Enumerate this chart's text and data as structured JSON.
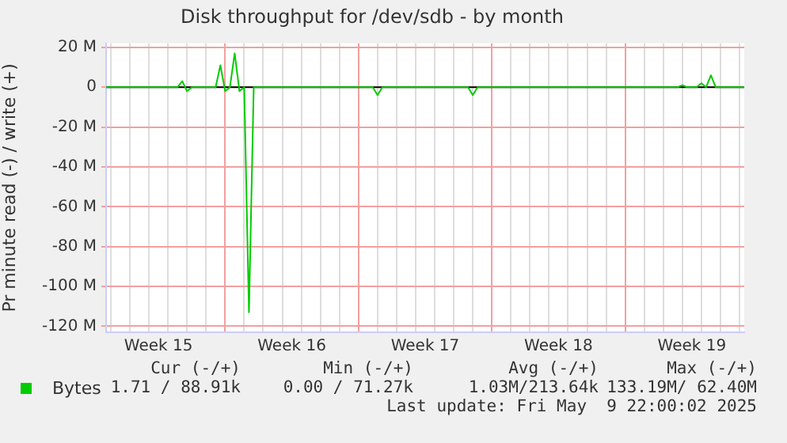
{
  "chart_data": {
    "type": "line",
    "title": "Disk throughput for /dev/sdb - by month",
    "ylabel": "Pr minute read (-) / write (+)",
    "categories": [
      null,
      null,
      null,
      null,
      null,
      null,
      null,
      null,
      null,
      null,
      null,
      "Week 15",
      null,
      null,
      null,
      null,
      null,
      null,
      null,
      null,
      null,
      null,
      null,
      null,
      null,
      null,
      null,
      null,
      null,
      null,
      null,
      null,
      null,
      null,
      null,
      null,
      null,
      null,
      null,
      "Week 16",
      null,
      null,
      null,
      null,
      null,
      null,
      null,
      null,
      null,
      null,
      null,
      null,
      null,
      null,
      null,
      null,
      null,
      null,
      null,
      null,
      null,
      null,
      null,
      null,
      null,
      null,
      null,
      "Week 17",
      null,
      null,
      null,
      null,
      null,
      null,
      null,
      null,
      null,
      null,
      null,
      null,
      null,
      null,
      null,
      null,
      null,
      null,
      null,
      null,
      null,
      null,
      null,
      null,
      null,
      null,
      null,
      "Week 18",
      null,
      null,
      null,
      null,
      null,
      null,
      null,
      null,
      null,
      null,
      null,
      null,
      null,
      null,
      null,
      null,
      null,
      null,
      null,
      null,
      null,
      null,
      null,
      null,
      null,
      null,
      null,
      "Week 19",
      null,
      null,
      null,
      null,
      null,
      null,
      null,
      null,
      null,
      null,
      null
    ],
    "series": [
      {
        "name": "Bytes",
        "color": "#00cc00",
        "values": [
          0,
          0,
          0,
          0,
          0,
          0,
          0,
          0,
          0,
          0,
          0,
          0,
          0,
          0,
          0,
          0,
          3,
          -2,
          0,
          0,
          0,
          0,
          0,
          0,
          11,
          -2,
          0,
          17,
          -2,
          0,
          -113,
          0,
          0,
          0,
          0,
          0,
          0,
          0,
          0,
          0,
          0,
          0,
          0,
          0,
          0,
          0,
          0,
          0,
          0,
          0,
          0,
          0,
          0,
          0,
          0,
          0,
          0,
          -4,
          0,
          0,
          0,
          0,
          0,
          0,
          0,
          0,
          0,
          0,
          0,
          0,
          0,
          0,
          0,
          0,
          0,
          0,
          0,
          -4,
          0,
          0,
          0,
          0,
          0,
          0,
          0,
          0,
          0,
          0,
          0,
          0,
          0,
          0,
          0,
          0,
          0,
          0,
          0,
          0,
          0,
          0,
          0,
          0,
          0,
          0,
          0,
          0,
          0,
          0,
          0,
          0,
          0,
          0,
          0,
          0,
          0,
          0,
          0,
          0,
          0,
          0,
          0,
          1,
          0,
          0,
          0,
          2,
          0,
          6,
          0,
          0,
          0,
          0,
          0,
          0,
          0
        ]
      }
    ],
    "ylim": [
      -123,
      22
    ],
    "yticks": [
      {
        "value": -120,
        "label": "-120 M"
      },
      {
        "value": -100,
        "label": "-100 M"
      },
      {
        "value": -80,
        "label": "-80 M"
      },
      {
        "value": -60,
        "label": "-60 M"
      },
      {
        "value": -40,
        "label": "-40 M"
      },
      {
        "value": -20,
        "label": "-20 M"
      },
      {
        "value": 0,
        "label": "0"
      },
      {
        "value": 20,
        "label": "20 M"
      }
    ],
    "ref_lines": [
      {
        "axis": "y",
        "value": 0,
        "color": "#000000"
      }
    ],
    "grid": true,
    "legend": "bottom left",
    "marker": "none",
    "line_style": "solid",
    "annotations": [
      "Cur (-/+)",
      "Min (-/+)",
      "Avg (-/+)",
      "Max (-/+)",
      "1.71 / 88.91k",
      "0.00 / 71.27k",
      "1.03M/213.64k",
      "133.19M/ 62.40M",
      "Last update: Fri May  9 22:00:02 2025"
    ]
  }
}
